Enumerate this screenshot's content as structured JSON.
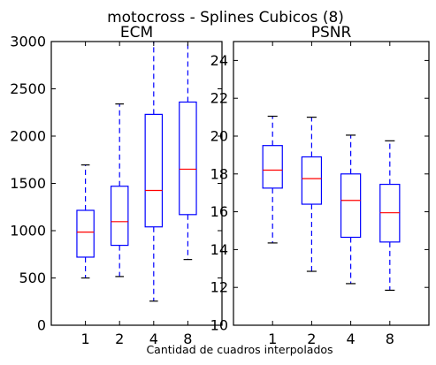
{
  "figure": {
    "suptitle": "motocross - Splines Cubicos (8)",
    "xlabel": "Cantidad de cuadros interpolados"
  },
  "colors": {
    "box": "#0000ff",
    "whisker": "#0000ff",
    "median": "#ff0000",
    "cap": "#000000",
    "frame": "#000000",
    "background": "#ffffff"
  },
  "chart_data": [
    {
      "type": "boxplot",
      "title": "ECM",
      "xlabel": "",
      "ylabel": "",
      "categories": [
        "1",
        "2",
        "4",
        "8"
      ],
      "ylim": [
        0,
        3000
      ],
      "yticks": [
        0,
        500,
        1000,
        1500,
        2000,
        2500,
        3000
      ],
      "boxes": [
        {
          "category": "1",
          "whisker_low": 500,
          "q1": 720,
          "median": 985,
          "q3": 1215,
          "whisker_high": 1695
        },
        {
          "category": "2",
          "whisker_low": 515,
          "q1": 845,
          "median": 1095,
          "q3": 1470,
          "whisker_high": 2340
        },
        {
          "category": "4",
          "whisker_low": 255,
          "q1": 1040,
          "median": 1425,
          "q3": 2230,
          "whisker_high": 3000
        },
        {
          "category": "8",
          "whisker_low": 695,
          "q1": 1170,
          "median": 1650,
          "q3": 2360,
          "whisker_high": 3000
        }
      ],
      "grid": false
    },
    {
      "type": "boxplot",
      "title": "PSNR",
      "xlabel": "",
      "ylabel": "",
      "categories": [
        "1",
        "2",
        "4",
        "8"
      ],
      "ylim": [
        10,
        25
      ],
      "yticks": [
        10,
        12,
        14,
        16,
        18,
        20,
        22,
        24
      ],
      "boxes": [
        {
          "category": "1",
          "whisker_low": 14.35,
          "q1": 17.25,
          "median": 18.2,
          "q3": 19.5,
          "whisker_high": 21.05
        },
        {
          "category": "2",
          "whisker_low": 12.85,
          "q1": 16.4,
          "median": 17.75,
          "q3": 18.9,
          "whisker_high": 21.0
        },
        {
          "category": "4",
          "whisker_low": 12.2,
          "q1": 14.65,
          "median": 16.6,
          "q3": 18.0,
          "whisker_high": 20.05
        },
        {
          "category": "8",
          "whisker_low": 11.85,
          "q1": 14.4,
          "median": 15.95,
          "q3": 17.45,
          "whisker_high": 19.75
        }
      ],
      "grid": false
    }
  ]
}
